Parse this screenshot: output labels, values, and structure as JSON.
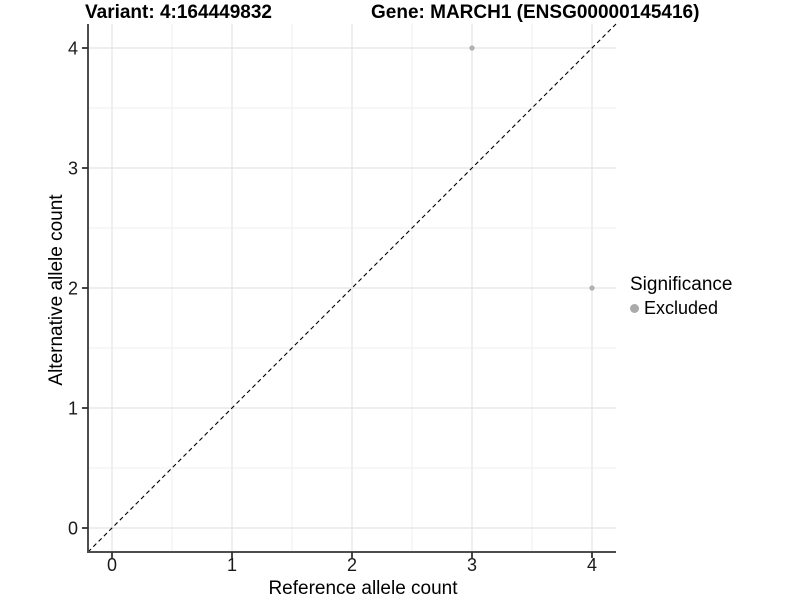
{
  "chart_data": {
    "type": "scatter",
    "title_left": "Variant: 4:164449832",
    "title_right": "Gene: MARCH1 (ENSG00000145416)",
    "xlabel": "Reference allele count",
    "ylabel": "Alternative allele count",
    "xlim": [
      -0.2,
      4.2
    ],
    "ylim": [
      -0.2,
      4.2
    ],
    "x_ticks": [
      0,
      1,
      2,
      3,
      4
    ],
    "y_ticks": [
      0,
      1,
      2,
      3,
      4
    ],
    "x_minor": [
      0.5,
      1.5,
      2.5,
      3.5
    ],
    "y_minor": [
      0.5,
      1.5,
      2.5,
      3.5
    ],
    "grid": "major+minor",
    "points": [
      {
        "x": 3,
        "y": 4,
        "series": "Excluded"
      },
      {
        "x": 4,
        "y": 2,
        "series": "Excluded"
      }
    ],
    "reference_line": {
      "kind": "identity",
      "style": "dashed",
      "x1": -0.2,
      "y1": -0.2,
      "x2": 4.2,
      "y2": 4.2
    },
    "legend": {
      "title": "Significance",
      "position": "right",
      "items": [
        {
          "label": "Excluded",
          "color": "#ababab",
          "marker": "circle"
        }
      ]
    },
    "colors": {
      "point": "#b0b0b0",
      "grid_major": "#e4e4e4",
      "grid_minor": "#efefef",
      "axis_line": "#4d4d4d",
      "tick": "#333333",
      "tick_label": "#1a1a1a",
      "reference_line": "#000000",
      "background": "#ffffff"
    }
  }
}
